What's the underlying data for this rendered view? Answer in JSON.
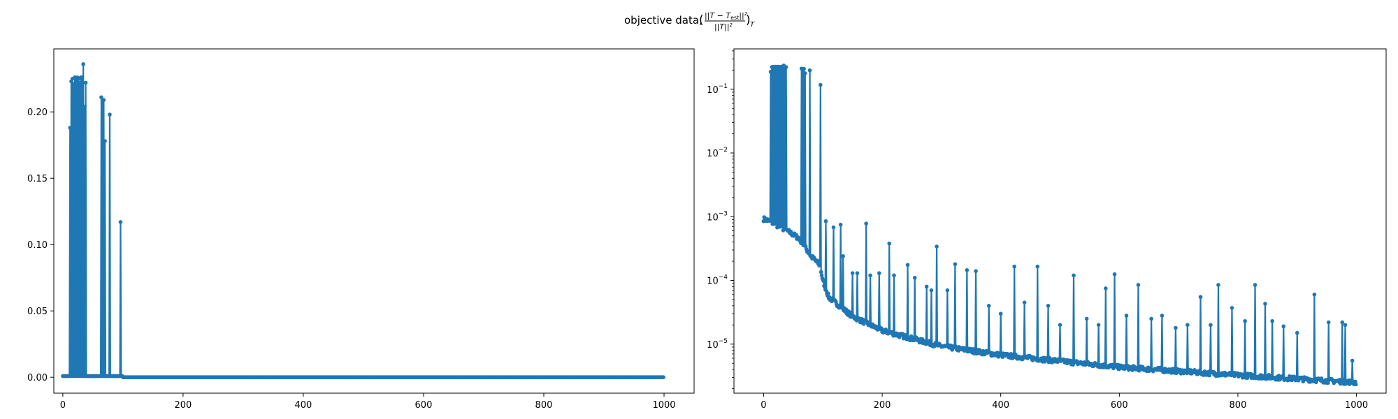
{
  "figure": {
    "suptitle_prefix": "objective data, ",
    "suptitle_math": {
      "open": "(",
      "num": "||T − T",
      "num_sub": "est",
      "num_tail": "||",
      "num_sup": "2",
      "den": "||T||",
      "den_sup": "2",
      "close": ")",
      "close_sub": "T"
    }
  },
  "chart_data": [
    {
      "type": "line",
      "marker": "point",
      "color": "#1f77b4",
      "title": "",
      "xlabel": "",
      "ylabel": "",
      "xlim": [
        -15,
        1050
      ],
      "ylim": [
        -0.012,
        0.2475
      ],
      "yscale": "linear",
      "grid": false,
      "xticks": [
        0,
        200,
        400,
        600,
        800,
        1000
      ],
      "xtick_labels": [
        "0",
        "200",
        "400",
        "600",
        "800",
        "1000"
      ],
      "yticks": [
        0,
        0.05,
        0.1,
        0.15,
        0.2
      ],
      "ytick_labels": [
        "0.00",
        "0.05",
        "0.10",
        "0.15",
        "0.20"
      ],
      "n_points": 1000,
      "baseline_value": 0.0009,
      "spikes": [
        {
          "x": 12,
          "y": 0.188
        },
        {
          "x": 14,
          "y": 0.223
        },
        {
          "x": 16,
          "y": 0.225
        },
        {
          "x": 18,
          "y": 0.221
        },
        {
          "x": 20,
          "y": 0.226
        },
        {
          "x": 22,
          "y": 0.224
        },
        {
          "x": 24,
          "y": 0.226
        },
        {
          "x": 26,
          "y": 0.225
        },
        {
          "x": 28,
          "y": 0.222
        },
        {
          "x": 30,
          "y": 0.226
        },
        {
          "x": 32,
          "y": 0.226
        },
        {
          "x": 34,
          "y": 0.236
        },
        {
          "x": 36,
          "y": 0.204
        },
        {
          "x": 38,
          "y": 0.222
        },
        {
          "x": 64,
          "y": 0.211
        },
        {
          "x": 66,
          "y": 0.207
        },
        {
          "x": 68,
          "y": 0.209
        },
        {
          "x": 70,
          "y": 0.178
        },
        {
          "x": 78,
          "y": 0.198
        },
        {
          "x": 96,
          "y": 0.117
        }
      ]
    },
    {
      "type": "line",
      "marker": "point",
      "color": "#1f77b4",
      "title": "",
      "xlabel": "",
      "ylabel": "",
      "xlim": [
        -50,
        1050
      ],
      "ylim": [
        1.7e-06,
        0.43
      ],
      "yscale": "log",
      "grid": false,
      "xticks": [
        0,
        200,
        400,
        600,
        800,
        1000
      ],
      "xtick_labels": [
        "0",
        "200",
        "400",
        "600",
        "800",
        "1000"
      ],
      "yticks": [
        1e-05,
        0.0001,
        0.001,
        0.01,
        0.1
      ],
      "ytick_labels": [
        {
          "base": "10",
          "exp": "−5"
        },
        {
          "base": "10",
          "exp": "−4"
        },
        {
          "base": "10",
          "exp": "−3"
        },
        {
          "base": "10",
          "exp": "−2"
        },
        {
          "base": "10",
          "exp": "−1"
        }
      ],
      "n_points": 1000,
      "baseline_curve": [
        {
          "x": 0,
          "y": 0.00085
        },
        {
          "x": 10,
          "y": 0.00078
        },
        {
          "x": 40,
          "y": 0.00055
        },
        {
          "x": 60,
          "y": 0.00042
        },
        {
          "x": 80,
          "y": 0.00022
        },
        {
          "x": 95,
          "y": 0.00016
        },
        {
          "x": 100,
          "y": 9e-05
        },
        {
          "x": 110,
          "y": 5e-05
        },
        {
          "x": 150,
          "y": 2.5e-05
        },
        {
          "x": 200,
          "y": 1.5e-05
        },
        {
          "x": 300,
          "y": 8.5e-06
        },
        {
          "x": 400,
          "y": 6.2e-06
        },
        {
          "x": 600,
          "y": 4e-06
        },
        {
          "x": 800,
          "y": 3e-06
        },
        {
          "x": 1000,
          "y": 2.3e-06
        }
      ],
      "spikes": [
        {
          "x": 12,
          "y": 0.188
        },
        {
          "x": 14,
          "y": 0.223
        },
        {
          "x": 16,
          "y": 0.225
        },
        {
          "x": 18,
          "y": 0.221
        },
        {
          "x": 20,
          "y": 0.226
        },
        {
          "x": 22,
          "y": 0.224
        },
        {
          "x": 24,
          "y": 0.226
        },
        {
          "x": 26,
          "y": 0.225
        },
        {
          "x": 28,
          "y": 0.222
        },
        {
          "x": 30,
          "y": 0.226
        },
        {
          "x": 32,
          "y": 0.226
        },
        {
          "x": 34,
          "y": 0.236
        },
        {
          "x": 36,
          "y": 0.204
        },
        {
          "x": 38,
          "y": 0.222
        },
        {
          "x": 64,
          "y": 0.211
        },
        {
          "x": 66,
          "y": 0.207
        },
        {
          "x": 68,
          "y": 0.209
        },
        {
          "x": 70,
          "y": 0.178
        },
        {
          "x": 78,
          "y": 0.198
        },
        {
          "x": 96,
          "y": 0.117
        },
        {
          "x": 105,
          "y": 0.00085
        },
        {
          "x": 118,
          "y": 0.00068
        },
        {
          "x": 130,
          "y": 0.00075
        },
        {
          "x": 134,
          "y": 0.00024
        },
        {
          "x": 150,
          "y": 0.00013
        },
        {
          "x": 158,
          "y": 0.00013
        },
        {
          "x": 173,
          "y": 0.00078
        },
        {
          "x": 180,
          "y": 0.00012
        },
        {
          "x": 195,
          "y": 0.00013
        },
        {
          "x": 212,
          "y": 0.00038
        },
        {
          "x": 220,
          "y": 0.00012
        },
        {
          "x": 243,
          "y": 0.000175
        },
        {
          "x": 255,
          "y": 0.00011
        },
        {
          "x": 275,
          "y": 8e-05
        },
        {
          "x": 283,
          "y": 7e-05
        },
        {
          "x": 292,
          "y": 0.00034
        },
        {
          "x": 310,
          "y": 7e-05
        },
        {
          "x": 323,
          "y": 0.00018
        },
        {
          "x": 343,
          "y": 0.000145
        },
        {
          "x": 358,
          "y": 0.00014
        },
        {
          "x": 380,
          "y": 4e-05
        },
        {
          "x": 400,
          "y": 3e-05
        },
        {
          "x": 423,
          "y": 0.000165
        },
        {
          "x": 440,
          "y": 4.5e-05
        },
        {
          "x": 462,
          "y": 0.000165
        },
        {
          "x": 480,
          "y": 4e-05
        },
        {
          "x": 500,
          "y": 2e-05
        },
        {
          "x": 523,
          "y": 0.00012
        },
        {
          "x": 545,
          "y": 2.5e-05
        },
        {
          "x": 565,
          "y": 2e-05
        },
        {
          "x": 577,
          "y": 7.5e-05
        },
        {
          "x": 592,
          "y": 0.000125
        },
        {
          "x": 612,
          "y": 2.8e-05
        },
        {
          "x": 632,
          "y": 8.5e-05
        },
        {
          "x": 654,
          "y": 2.5e-05
        },
        {
          "x": 672,
          "y": 2.8e-05
        },
        {
          "x": 695,
          "y": 1.8e-05
        },
        {
          "x": 715,
          "y": 2e-05
        },
        {
          "x": 737,
          "y": 5.5e-05
        },
        {
          "x": 754,
          "y": 2e-05
        },
        {
          "x": 767,
          "y": 8.5e-05
        },
        {
          "x": 790,
          "y": 3.7e-05
        },
        {
          "x": 812,
          "y": 2.3e-05
        },
        {
          "x": 829,
          "y": 8.5e-05
        },
        {
          "x": 846,
          "y": 4.3e-05
        },
        {
          "x": 858,
          "y": 2.3e-05
        },
        {
          "x": 877,
          "y": 1.9e-05
        },
        {
          "x": 900,
          "y": 1.5e-05
        },
        {
          "x": 929,
          "y": 6e-05
        },
        {
          "x": 953,
          "y": 2.2e-05
        },
        {
          "x": 976,
          "y": 2.2e-05
        },
        {
          "x": 981,
          "y": 2e-05
        },
        {
          "x": 993,
          "y": 5.5e-06
        }
      ]
    }
  ]
}
